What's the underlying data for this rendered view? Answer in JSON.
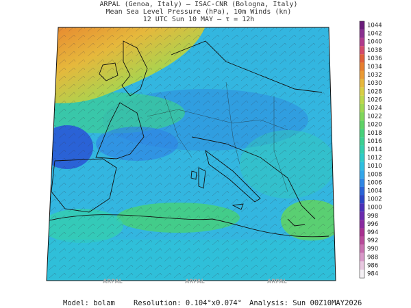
{
  "header": {
    "line1": "ARPAL (Genoa, Italy)  —  ISAC-CNR (Bologna, Italy)",
    "line2": "Mean Sea Level Pressure (hPa), 10m Winds (kn)",
    "line3": "12 UTC Sun 10 MAY  —  τ = 12h"
  },
  "colorbar": {
    "levels": [
      1044,
      1042,
      1040,
      1038,
      1036,
      1034,
      1032,
      1030,
      1028,
      1026,
      1024,
      1022,
      1020,
      1018,
      1016,
      1014,
      1012,
      1010,
      1008,
      1006,
      1004,
      1002,
      1000,
      998,
      996,
      994,
      992,
      990,
      988,
      986,
      984
    ],
    "colors": [
      "#6a1b7a",
      "#8a2f8f",
      "#b03a8c",
      "#d44a6a",
      "#e0603a",
      "#e67e2e",
      "#ea9a34",
      "#e6b83c",
      "#d8cf44",
      "#bcd84c",
      "#9fd852",
      "#7fd65a",
      "#5ed266",
      "#46d07a",
      "#3ccf92",
      "#34cfae",
      "#2fcbc8",
      "#2dbfe0",
      "#33a6ea",
      "#2f86e4",
      "#2a62d6",
      "#2b45c4",
      "#4a2fb8",
      "#6a2aae",
      "#8a2aa0",
      "#a83090",
      "#b84a9a",
      "#c870b0",
      "#d898c8",
      "#e8c8e0",
      "#f4f0f4"
    ]
  },
  "watermark": "ARPAL",
  "footer": {
    "model": "Model: bolam",
    "resolution": "Resolution: 0.104°x0.074°",
    "analysis": "Analysis: Sun 00Z10MAY2026"
  }
}
